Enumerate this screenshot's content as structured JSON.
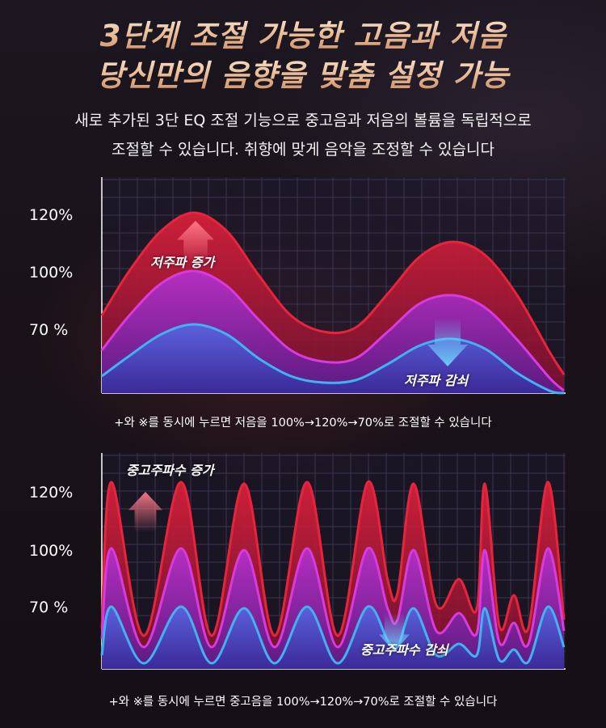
{
  "header": {
    "title_line1": "3단계 조절 가능한 고음과 저음",
    "title_line2": "당신만의 음향을 맞춤 설정 가능",
    "subtitle_line1": "새로 추가된 3단 EQ 조절 기능으로 중고음과 저음의 볼륨을 독립적으로",
    "subtitle_line2": "조절할 수 있습니다. 취향에 맞게 음악을 조정할 수 있습니다"
  },
  "colors": {
    "title_gold": "#e7b892",
    "red_series": "#e8243c",
    "magenta_series": "#d83adf",
    "blue_series": "#3fb3f0",
    "grid": "#3a3550"
  },
  "chart_data": [
    {
      "type": "area",
      "y_tick_labels": [
        "120%",
        "100%",
        "70 %"
      ],
      "series": [
        {
          "name": "",
          "level": "120%"
        },
        {
          "name": "",
          "level": "100%"
        },
        {
          "name": "",
          "level": "70 %"
        }
      ],
      "annotations": [
        {
          "text": "저주파 증가",
          "icon": "arrow-up-icon"
        },
        {
          "text": "저주파 감쇠",
          "icon": "arrow-down-icon"
        }
      ],
      "grid": true,
      "note": "+와 ※를 동시에 누르면 저음을 100%→120%→70%로 조절할 수 있습니다"
    },
    {
      "type": "area",
      "y_tick_labels": [
        "120%",
        "100%",
        "70 %"
      ],
      "series": [
        {
          "name": "",
          "level": "120%"
        },
        {
          "name": "",
          "level": "100%"
        },
        {
          "name": "",
          "level": "70 %"
        }
      ],
      "annotations": [
        {
          "text": "중고주파수 증가",
          "icon": "arrow-up-icon"
        },
        {
          "text": "중고주파수 감쇠",
          "icon": "arrow-down-icon"
        }
      ],
      "grid": true,
      "note": "+와 ※를 동시에 누르면 중고음을 100%→120%→70%로 조절할 수 있습니다"
    }
  ]
}
